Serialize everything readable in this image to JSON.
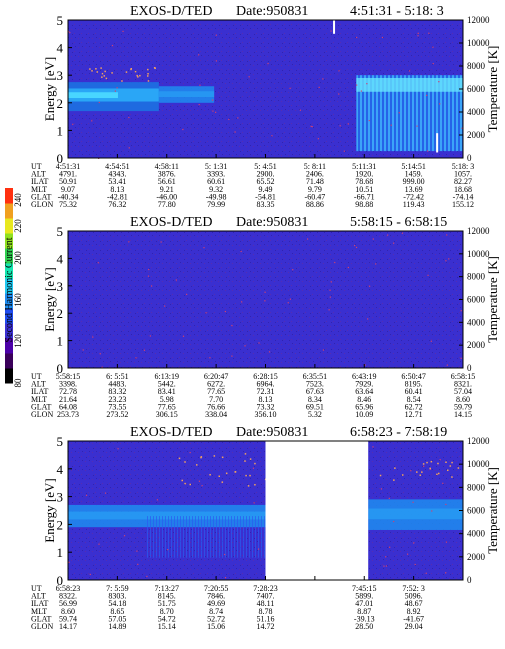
{
  "chart_data": [
    {
      "type": "heatmap",
      "title": "EXOS-D/TED",
      "date_label": "Date:950831",
      "time_range": "4:51:31 - 5:18: 3",
      "ylabel": "Energy [eV]",
      "y2label": "Temperature [K]",
      "ylim": [
        0,
        5
      ],
      "y2lim": [
        0,
        12000
      ],
      "yticks": [
        "0",
        "1",
        "2",
        "3",
        "4",
        "5"
      ],
      "y2ticks": [
        "0",
        "2000",
        "4000",
        "6000",
        "8000",
        "10000",
        "12000"
      ],
      "background_color": "#3a2fd0",
      "band_color": "#1f8cf0",
      "band_bright_color": "#49e0ff",
      "bands": [
        {
          "t0": 0.0,
          "t1": 0.23,
          "lo": 1.7,
          "hi": 2.75,
          "style": "bright"
        },
        {
          "t0": 0.23,
          "t1": 0.37,
          "lo": 2.0,
          "hi": 2.6,
          "style": "mid"
        },
        {
          "t0": 0.73,
          "t1": 1.0,
          "lo": 0.25,
          "hi": 3.0,
          "style": "patchy"
        }
      ],
      "spikes": [
        {
          "t": 0.671,
          "lo": 4.5,
          "hi": 5.0
        },
        {
          "t": 0.932,
          "lo": 0.2,
          "hi": 0.9
        }
      ],
      "table": {
        "row_labels": [
          "UT",
          "ALT",
          "ILAT",
          "MLT",
          "GLAT",
          "GLON"
        ],
        "columns": [
          [
            "4:51:31",
            "4791.",
            "50.91",
            "9.07",
            "-40.34",
            "75.32"
          ],
          [
            "4:54:51",
            "4343.",
            "53.41",
            "8.13",
            "-42.81",
            "76.32"
          ],
          [
            "4:58:11",
            "3876.",
            "56.61",
            "9.21",
            "-46.00",
            "77.80"
          ],
          [
            "5: 1:31",
            "3393.",
            "60.61",
            "9.32",
            "-49.98",
            "79.99"
          ],
          [
            "5: 4:51",
            "2900.",
            "65.52",
            "9.49",
            "-54.81",
            "83.35"
          ],
          [
            "5: 8:11",
            "2406.",
            "71.48",
            "9.79",
            "-60.47",
            "88.86"
          ],
          [
            "5:11:31",
            "1920.",
            "78.68",
            "10.51",
            "-66.71",
            "98.88"
          ],
          [
            "5:14:51",
            "1459.",
            "999.00",
            "13.69",
            "-72.42",
            "119.43"
          ],
          [
            "5:18: 3",
            "1057.",
            "82.27",
            "18.68",
            "-74.14",
            "155.12"
          ]
        ]
      }
    },
    {
      "type": "heatmap",
      "title": "EXOS-D/TED",
      "date_label": "Date:950831",
      "time_range": "5:58:15 - 6:58:15",
      "ylabel": "Energy [eV]",
      "y2label": "Temperature [K]",
      "ylim": [
        0,
        5
      ],
      "y2lim": [
        0,
        12000
      ],
      "yticks": [
        "0",
        "1",
        "2",
        "3",
        "4",
        "5"
      ],
      "y2ticks": [
        "0",
        "2000",
        "4000",
        "6000",
        "8000",
        "10000",
        "12000"
      ],
      "background_color": "#3a2fd0",
      "bands": [],
      "table": {
        "row_labels": [
          "UT",
          "ALT",
          "ILAT",
          "MLT",
          "GLAT",
          "GLON"
        ],
        "columns": [
          [
            "5:58:15",
            "3398.",
            "72.78",
            "21.64",
            "64.08",
            "253.73"
          ],
          [
            "6: 5:51",
            "4483.",
            "83.32",
            "23.23",
            "73.55",
            "273.52"
          ],
          [
            "6:13:19",
            "5442.",
            "83.41",
            "5.98",
            "77.65",
            "306.15"
          ],
          [
            "6:20:47",
            "6272.",
            "77.65",
            "7.70",
            "76.66",
            "338.04"
          ],
          [
            "6:28:15",
            "6964.",
            "72.31",
            "8.13",
            "73.32",
            "356.10"
          ],
          [
            "6:35:51",
            "7523.",
            "67.63",
            "8.34",
            "69.51",
            "5.32"
          ],
          [
            "6:43:19",
            "7929.",
            "63.64",
            "8.46",
            "65.96",
            "10.09"
          ],
          [
            "6:50:47",
            "8195.",
            "60.41",
            "8.54",
            "62.72",
            "12.71"
          ],
          [
            "6:58:15",
            "8321.",
            "57.04",
            "8.60",
            "59.79",
            "14.15"
          ]
        ]
      }
    },
    {
      "type": "heatmap",
      "title": "EXOS-D/TED",
      "date_label": "Date:950831",
      "time_range": "6:58:23 - 7:58:19",
      "ylabel": "Energy [eV]",
      "y2label": "Temperature [K]",
      "ylim": [
        0,
        5
      ],
      "y2lim": [
        0,
        12000
      ],
      "yticks": [
        "0",
        "1",
        "2",
        "3",
        "4",
        "5"
      ],
      "y2ticks": [
        "0",
        "2000",
        "4000",
        "6000",
        "8000",
        "10000",
        "12000"
      ],
      "background_color": "#3a2fd0",
      "band_color": "#1f8cf0",
      "data_gap": [
        0.5,
        0.76
      ],
      "bands": [
        {
          "t0": 0.0,
          "t1": 0.5,
          "lo": 1.9,
          "hi": 2.7,
          "style": "mid"
        },
        {
          "t0": 0.2,
          "t1": 0.5,
          "lo": 0.8,
          "hi": 2.3,
          "style": "fan"
        },
        {
          "t0": 0.76,
          "t1": 1.0,
          "lo": 1.8,
          "hi": 2.9,
          "style": "mid"
        }
      ],
      "table": {
        "row_labels": [
          "UT",
          "ALT",
          "ILAT",
          "MLT",
          "GLAT",
          "GLON"
        ],
        "columns": [
          [
            "6:58:23",
            "8322.",
            "56.99",
            "8.60",
            "59.74",
            "14.17"
          ],
          [
            "7: 5:59",
            "8303.",
            "54.18",
            "8.65",
            "57.05",
            "14.89"
          ],
          [
            "7:13:27",
            "8145.",
            "51.75",
            "8.70",
            "54.72",
            "15.14"
          ],
          [
            "7:20:55",
            "7846.",
            "49.69",
            "8.74",
            "52.72",
            "15.06"
          ],
          [
            "7:28:23",
            "7407.",
            "48.11",
            "8.78",
            "51.16",
            "14.72"
          ],
          [
            "",
            "",
            " ",
            "",
            "",
            ""
          ],
          [
            "7:45:15",
            "5899.",
            "47.01",
            "8.87",
            "-39.13",
            "28.50"
          ],
          [
            "7:52: 3",
            "5096.",
            "48.67",
            "8.92",
            "-41.67",
            "29.04"
          ],
          [
            "",
            "",
            "",
            "",
            "",
            ""
          ]
        ]
      }
    }
  ],
  "colorbar": {
    "label": "Second Harmonic Current",
    "ticks": [
      "80",
      "120",
      "160",
      "200",
      "220",
      "240"
    ],
    "colors": [
      "#000000",
      "#3a005a",
      "#4b00a8",
      "#3a2fd0",
      "#1f4cf0",
      "#1f8cf0",
      "#1fc8f0",
      "#15e6b0",
      "#30d050",
      "#90e020",
      "#e8e820",
      "#f0a020",
      "#ff3010"
    ]
  }
}
